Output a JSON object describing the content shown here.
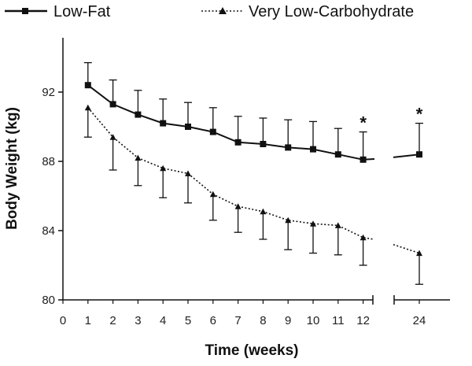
{
  "chart_data": {
    "type": "line",
    "xlabel": "Time (weeks)",
    "ylabel": "Body Weight (kg)",
    "ylim": [
      80,
      95
    ],
    "yticks": [
      80,
      84,
      88,
      92
    ],
    "xticks": [
      "0",
      "1",
      "2",
      "3",
      "4",
      "5",
      "6",
      "7",
      "8",
      "9",
      "10",
      "11",
      "12",
      "24"
    ],
    "x": [
      1,
      2,
      3,
      4,
      5,
      6,
      7,
      8,
      9,
      10,
      11,
      12,
      24
    ],
    "axis_break": "between 12 and 24",
    "legend_position": "top",
    "grid": false,
    "series": [
      {
        "name": "Low-Fat",
        "marker": "square",
        "line_style": "solid",
        "color": "#111111",
        "values": [
          92.4,
          91.3,
          90.7,
          90.2,
          90.0,
          89.7,
          89.1,
          89.0,
          88.8,
          88.7,
          88.4,
          88.1,
          88.4
        ],
        "error_upper": [
          93.7,
          92.7,
          92.1,
          91.6,
          91.4,
          91.1,
          90.6,
          90.5,
          90.4,
          90.3,
          89.9,
          89.7,
          90.2
        ]
      },
      {
        "name": "Very Low-Carbohydrate",
        "marker": "triangle",
        "line_style": "dotted",
        "color": "#111111",
        "values": [
          91.1,
          89.4,
          88.2,
          87.6,
          87.3,
          86.1,
          85.4,
          85.1,
          84.6,
          84.4,
          84.3,
          83.6,
          82.7
        ],
        "error_lower": [
          89.4,
          87.5,
          86.6,
          85.9,
          85.6,
          84.6,
          83.9,
          83.5,
          82.9,
          82.7,
          82.6,
          82.0,
          80.9
        ]
      }
    ],
    "annotations": [
      {
        "text": "*",
        "x": 12
      },
      {
        "text": "*",
        "x": 24
      }
    ]
  }
}
